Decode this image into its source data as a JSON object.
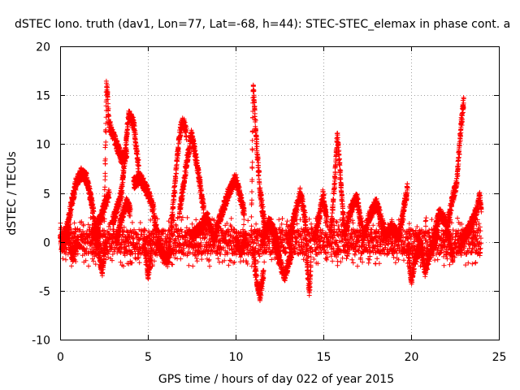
{
  "chart_data": {
    "type": "scatter",
    "title": "dSTEC Iono. truth (dav1, Lon=77, Lat=-68, h=44): STEC-STEC_elemax in phase cont. a",
    "xlabel": "GPS time / hours of day 022 of year 2015",
    "ylabel": "dSTEC  / TECUs",
    "xlim": [
      0,
      25
    ],
    "ylim": [
      -10,
      20
    ],
    "x_ticks": [
      "0",
      "5",
      "10",
      "15",
      "20",
      "25"
    ],
    "y_ticks": [
      "-10",
      "-5",
      "0",
      "5",
      "10",
      "15",
      "20"
    ],
    "grid": true,
    "marker": "plus",
    "color": "#ff0000",
    "series": [
      {
        "arcs": [
          {
            "x0": 0.0,
            "x1": 0.5,
            "points": [
              [
                0.0,
                0.5
              ],
              [
                0.15,
                -0.5
              ],
              [
                0.3,
                1.0
              ],
              [
                0.5,
                2.0
              ]
            ]
          },
          {
            "x0": 0.3,
            "x1": 1.5,
            "points": [
              [
                0.3,
                0.0
              ],
              [
                0.6,
                3.5
              ],
              [
                0.9,
                6.0
              ],
              [
                1.2,
                7.0
              ],
              [
                1.5,
                6.5
              ]
            ]
          },
          {
            "x0": 0.5,
            "x1": 1.0,
            "points": [
              [
                0.5,
                0.5
              ],
              [
                0.7,
                -1.5
              ],
              [
                1.0,
                0.0
              ]
            ]
          },
          {
            "x0": 1.5,
            "x1": 2.2,
            "points": [
              [
                1.5,
                6.5
              ],
              [
                1.8,
                4.0
              ],
              [
                2.0,
                1.5
              ],
              [
                2.2,
                0.0
              ]
            ]
          },
          {
            "x0": 1.8,
            "x1": 2.8,
            "points": [
              [
                1.8,
                0.5
              ],
              [
                2.1,
                1.5
              ],
              [
                2.4,
                3.0
              ],
              [
                2.8,
                5.0
              ]
            ]
          },
          {
            "x0": 2.0,
            "x1": 2.6,
            "points": [
              [
                2.0,
                1.0
              ],
              [
                2.2,
                -1.0
              ],
              [
                2.4,
                -3.0
              ],
              [
                2.6,
                0.0
              ]
            ]
          },
          {
            "x0": 2.5,
            "x1": 3.8,
            "points": [
              [
                2.5,
                1.0
              ],
              [
                2.65,
                16.5
              ],
              [
                2.8,
                12.0
              ],
              [
                3.2,
                10.0
              ],
              [
                3.5,
                8.5
              ],
              [
                3.8,
                9.0
              ]
            ]
          },
          {
            "x0": 3.0,
            "x1": 4.5,
            "points": [
              [
                3.0,
                2.0
              ],
              [
                3.5,
                5.0
              ],
              [
                3.9,
                13.0
              ],
              [
                4.2,
                12.0
              ],
              [
                4.5,
                7.0
              ]
            ]
          },
          {
            "x0": 3.2,
            "x1": 4.0,
            "points": [
              [
                3.2,
                0.0
              ],
              [
                3.5,
                2.5
              ],
              [
                3.8,
                4.0
              ],
              [
                4.0,
                3.0
              ]
            ]
          },
          {
            "x0": 4.2,
            "x1": 5.5,
            "points": [
              [
                4.2,
                6.0
              ],
              [
                4.6,
                6.5
              ],
              [
                5.0,
                5.0
              ],
              [
                5.3,
                3.5
              ],
              [
                5.5,
                1.0
              ]
            ]
          },
          {
            "x0": 4.8,
            "x1": 5.2,
            "points": [
              [
                4.8,
                0.0
              ],
              [
                5.0,
                -3.5
              ],
              [
                5.2,
                -1.0
              ]
            ]
          },
          {
            "x0": 5.5,
            "x1": 6.3,
            "points": [
              [
                5.5,
                0.0
              ],
              [
                5.8,
                -1.0
              ],
              [
                6.1,
                -2.0
              ],
              [
                6.3,
                -1.0
              ]
            ]
          },
          {
            "x0": 6.3,
            "x1": 7.2,
            "points": [
              [
                6.3,
                1.0
              ],
              [
                6.5,
                5.0
              ],
              [
                6.8,
                11.0
              ],
              [
                7.0,
                12.5
              ],
              [
                7.2,
                11.0
              ]
            ]
          },
          {
            "x0": 6.8,
            "x1": 8.2,
            "points": [
              [
                6.8,
                3.0
              ],
              [
                7.2,
                8.0
              ],
              [
                7.5,
                11.0
              ],
              [
                7.8,
                8.0
              ],
              [
                8.2,
                3.0
              ]
            ]
          },
          {
            "x0": 7.5,
            "x1": 8.8,
            "points": [
              [
                7.5,
                0.5
              ],
              [
                8.0,
                1.5
              ],
              [
                8.4,
                2.5
              ],
              [
                8.8,
                0.0
              ]
            ]
          },
          {
            "x0": 8.8,
            "x1": 10.5,
            "points": [
              [
                8.8,
                0.5
              ],
              [
                9.2,
                3.0
              ],
              [
                9.6,
                5.0
              ],
              [
                10.0,
                6.5
              ],
              [
                10.5,
                3.0
              ]
            ]
          },
          {
            "x0": 10.0,
            "x1": 10.6,
            "points": [
              [
                10.0,
                0.0
              ],
              [
                10.3,
                -1.0
              ],
              [
                10.6,
                0.5
              ]
            ]
          },
          {
            "x0": 10.9,
            "x1": 11.7,
            "points": [
              [
                10.9,
                2.0
              ],
              [
                11.0,
                16.0
              ],
              [
                11.2,
                10.0
              ],
              [
                11.4,
                5.0
              ],
              [
                11.7,
                1.0
              ]
            ]
          },
          {
            "x0": 11.0,
            "x1": 11.6,
            "points": [
              [
                11.0,
                -1.0
              ],
              [
                11.2,
                -4.0
              ],
              [
                11.4,
                -5.5
              ],
              [
                11.6,
                -3.0
              ]
            ]
          },
          {
            "x0": 11.5,
            "x1": 12.5,
            "points": [
              [
                11.5,
                0.0
              ],
              [
                11.9,
                2.0
              ],
              [
                12.2,
                1.0
              ],
              [
                12.5,
                -1.0
              ]
            ]
          },
          {
            "x0": 12.2,
            "x1": 13.2,
            "points": [
              [
                12.2,
                0.0
              ],
              [
                12.5,
                -2.0
              ],
              [
                12.8,
                -3.5
              ],
              [
                13.2,
                -1.0
              ]
            ]
          },
          {
            "x0": 13.0,
            "x1": 14.0,
            "points": [
              [
                13.0,
                0.0
              ],
              [
                13.4,
                3.0
              ],
              [
                13.7,
                5.0
              ],
              [
                14.0,
                2.0
              ]
            ]
          },
          {
            "x0": 14.0,
            "x1": 14.3,
            "points": [
              [
                14.0,
                0.0
              ],
              [
                14.1,
                -3.0
              ],
              [
                14.2,
                -5.0
              ],
              [
                14.3,
                -2.0
              ]
            ]
          },
          {
            "x0": 14.5,
            "x1": 15.2,
            "points": [
              [
                14.5,
                0.5
              ],
              [
                14.8,
                3.0
              ],
              [
                15.0,
                5.0
              ],
              [
                15.2,
                2.0
              ]
            ]
          },
          {
            "x0": 15.4,
            "x1": 16.2,
            "points": [
              [
                15.4,
                0.5
              ],
              [
                15.6,
                5.0
              ],
              [
                15.8,
                11.0
              ],
              [
                16.0,
                6.0
              ],
              [
                16.2,
                1.0
              ]
            ]
          },
          {
            "x0": 16.2,
            "x1": 17.2,
            "points": [
              [
                16.2,
                0.5
              ],
              [
                16.5,
                3.0
              ],
              [
                16.9,
                4.5
              ],
              [
                17.2,
                1.5
              ]
            ]
          },
          {
            "x0": 17.2,
            "x1": 18.5,
            "points": [
              [
                17.2,
                0.0
              ],
              [
                17.6,
                2.5
              ],
              [
                18.0,
                4.0
              ],
              [
                18.5,
                1.0
              ]
            ]
          },
          {
            "x0": 18.5,
            "x1": 19.8,
            "points": [
              [
                18.5,
                0.5
              ],
              [
                18.9,
                1.5
              ],
              [
                19.3,
                0.5
              ],
              [
                19.8,
                5.5
              ]
            ]
          },
          {
            "x0": 19.8,
            "x1": 20.5,
            "points": [
              [
                19.8,
                0.0
              ],
              [
                20.0,
                -4.0
              ],
              [
                20.2,
                -2.0
              ],
              [
                20.5,
                -0.5
              ]
            ]
          },
          {
            "x0": 20.5,
            "x1": 21.5,
            "points": [
              [
                20.5,
                0.0
              ],
              [
                20.8,
                -3.0
              ],
              [
                21.1,
                -1.0
              ],
              [
                21.5,
                1.0
              ]
            ]
          },
          {
            "x0": 21.3,
            "x1": 22.4,
            "points": [
              [
                21.3,
                0.5
              ],
              [
                21.6,
                3.0
              ],
              [
                22.0,
                2.0
              ],
              [
                22.4,
                -2.0
              ]
            ]
          },
          {
            "x0": 22.0,
            "x1": 23.0,
            "points": [
              [
                22.0,
                1.0
              ],
              [
                22.3,
                4.0
              ],
              [
                22.6,
                6.0
              ],
              [
                22.8,
                11.0
              ],
              [
                23.0,
                14.5
              ]
            ]
          },
          {
            "x0": 22.8,
            "x1": 24.0,
            "points": [
              [
                22.8,
                0.0
              ],
              [
                23.2,
                1.0
              ],
              [
                23.6,
                2.5
              ],
              [
                23.9,
                4.5
              ],
              [
                24.0,
                3.5
              ]
            ]
          }
        ]
      }
    ]
  }
}
